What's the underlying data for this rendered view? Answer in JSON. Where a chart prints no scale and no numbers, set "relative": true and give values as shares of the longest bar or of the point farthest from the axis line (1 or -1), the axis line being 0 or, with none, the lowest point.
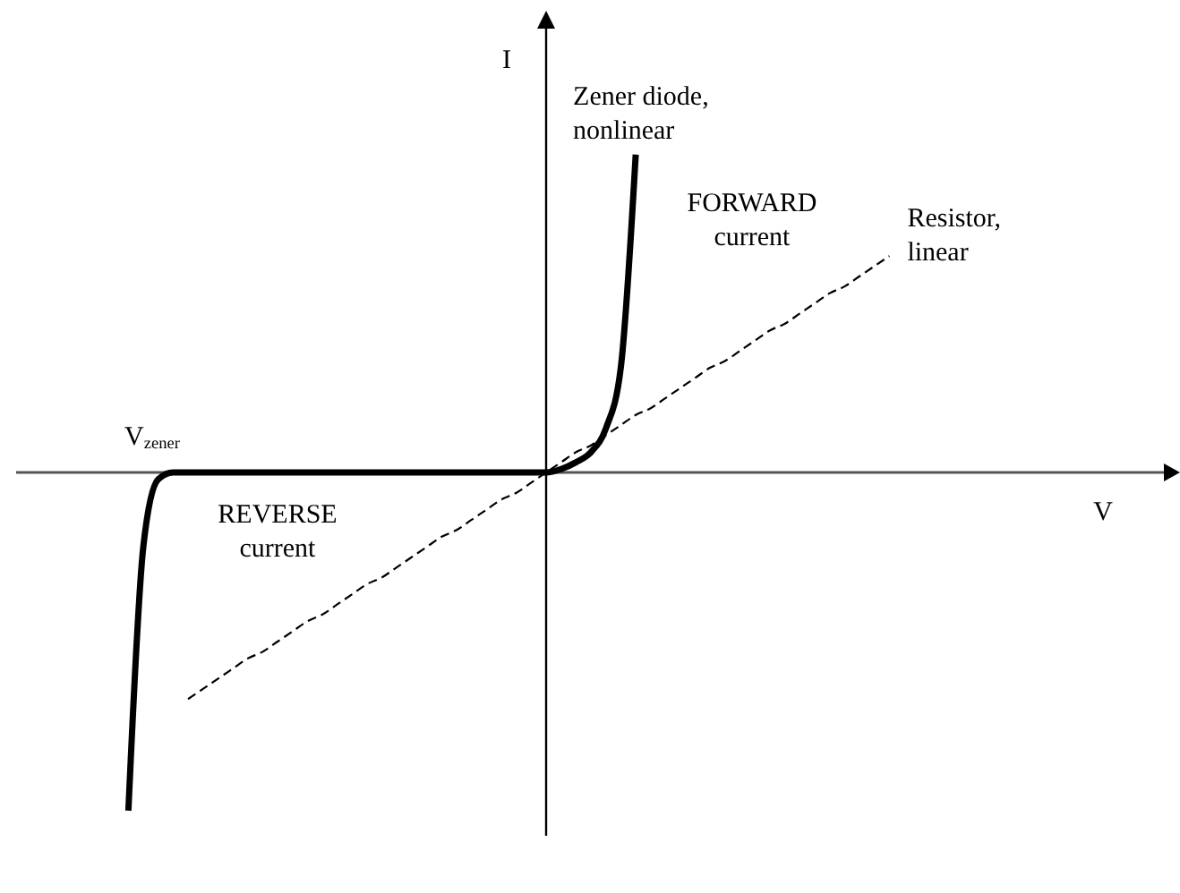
{
  "chart_data": {
    "type": "line",
    "relative": true,
    "ylabel": "I",
    "categories": [
      null,
      null,
      null,
      null,
      null,
      null,
      null,
      null,
      null,
      null,
      null,
      null,
      null,
      null,
      null,
      null,
      null,
      null,
      null,
      null,
      null,
      null,
      null,
      null,
      null,
      null,
      null,
      null,
      null,
      null,
      null,
      null,
      null,
      null,
      null,
      null,
      null,
      null,
      null,
      null,
      null,
      null,
      null,
      null,
      null,
      null,
      null,
      null,
      null,
      null,
      null,
      null
    ],
    "series": [
      {
        "name": "Zener diode, nonlinear",
        "color": "#000000",
        "line_style": "solid",
        "values": [
          -1,
          -0.22,
          -0.02,
          0,
          0,
          0,
          0,
          0,
          0,
          0,
          0,
          0,
          0,
          0,
          0,
          0,
          0,
          0,
          0,
          0,
          0,
          0,
          0,
          0,
          0,
          0,
          0,
          0,
          0,
          0.01,
          0.03,
          0.06,
          0.13,
          0.31,
          0.94,
          null,
          null,
          null,
          null,
          null,
          null,
          null,
          null,
          null,
          null,
          null,
          null,
          null,
          null,
          null,
          null,
          null
        ]
      },
      {
        "name": "Resistor, linear",
        "color": "#000000",
        "line_style": "dashed",
        "values": [
          null,
          null,
          null,
          null,
          -0.67,
          -0.64,
          -0.61,
          -0.58,
          -0.55,
          -0.53,
          -0.5,
          -0.47,
          -0.44,
          -0.42,
          -0.39,
          -0.36,
          -0.33,
          -0.31,
          -0.28,
          -0.25,
          -0.22,
          -0.19,
          -0.17,
          -0.14,
          -0.11,
          -0.08,
          -0.06,
          -0.03,
          0,
          0.03,
          0.06,
          0.08,
          0.11,
          0.14,
          0.17,
          0.19,
          0.22,
          0.25,
          0.28,
          0.31,
          0.33,
          0.36,
          0.39,
          0.42,
          0.44,
          0.47,
          0.5,
          0.53,
          0.55,
          0.58,
          0.61,
          0.64
        ]
      }
    ],
    "annotations": [
      "V$_{zener}$",
      "FORWARD current",
      "REVERSE current",
      "V"
    ]
  }
}
